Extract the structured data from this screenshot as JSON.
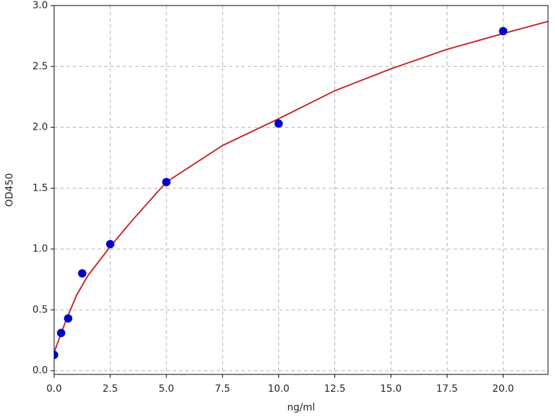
{
  "chart_data": {
    "type": "scatter",
    "xlabel": "ng/ml",
    "ylabel": "OD450",
    "xlim": [
      0,
      22
    ],
    "ylim": [
      -0.03,
      3.0
    ],
    "xticks": [
      {
        "value": 0,
        "label": "0.0"
      },
      2.5,
      {
        "value": 5,
        "label": "5.0"
      },
      7.5,
      {
        "value": 10,
        "label": "10.0"
      },
      12.5,
      {
        "value": 15,
        "label": "15.0"
      },
      17.5,
      {
        "value": 20,
        "label": "20.0"
      }
    ],
    "yticks": [
      {
        "value": 0,
        "label": "0.0"
      },
      0.5,
      {
        "value": 1,
        "label": "1.0"
      },
      1.5,
      {
        "value": 2,
        "label": "2.0"
      },
      2.5,
      {
        "value": 3,
        "label": "3.0"
      }
    ],
    "grid": true,
    "series": [
      {
        "type": "line",
        "color": "#c62828",
        "x": [
          0,
          0.5,
          1,
          1.5,
          2.5,
          3.5,
          5,
          7.5,
          10,
          12.5,
          15,
          17.5,
          20,
          22
        ],
        "values": [
          0.15,
          0.4,
          0.62,
          0.78,
          1.02,
          1.24,
          1.55,
          1.85,
          2.07,
          2.3,
          2.48,
          2.64,
          2.77,
          2.87
        ]
      },
      {
        "type": "scatter",
        "color": "#0000cc",
        "x": [
          0,
          0.3125,
          0.625,
          1.25,
          2.5,
          5,
          10,
          20
        ],
        "values": [
          0.13,
          0.31,
          0.43,
          0.8,
          1.04,
          1.55,
          2.03,
          2.79
        ]
      }
    ]
  }
}
